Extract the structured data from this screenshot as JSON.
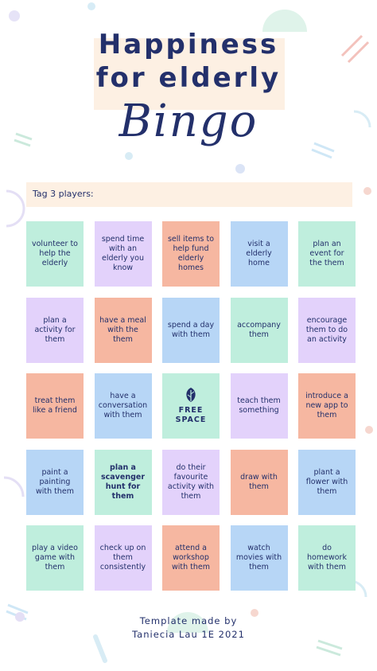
{
  "title": {
    "line1": "Happiness",
    "line2": "for elderly",
    "line3": "Bingo"
  },
  "tag_label": "Tag 3 players:",
  "cells": [
    {
      "text": "volunteer to help the elderly",
      "color": "green"
    },
    {
      "text": "spend time with an elderly you know",
      "color": "purple"
    },
    {
      "text": "sell items to help fund elderly homes",
      "color": "salmon"
    },
    {
      "text": "visit a elderly home",
      "color": "blue"
    },
    {
      "text": "plan an event for the them",
      "color": "green"
    },
    {
      "text": "plan a activity for them",
      "color": "purple"
    },
    {
      "text": "have a meal with the them",
      "color": "salmon"
    },
    {
      "text": "spend a day with them",
      "color": "blue"
    },
    {
      "text": "accompany them",
      "color": "green"
    },
    {
      "text": "encourage them to do an activity",
      "color": "purple"
    },
    {
      "text": "treat them like a friend",
      "color": "salmon"
    },
    {
      "text": "have a conversation with them",
      "color": "blue"
    },
    {
      "text": "FREE SPACE",
      "color": "green",
      "free": true,
      "icon": "leaf-icon"
    },
    {
      "text": "teach them something",
      "color": "purple"
    },
    {
      "text": "introduce a new app to them",
      "color": "salmon"
    },
    {
      "text": "paint a painting with them",
      "color": "blue"
    },
    {
      "text": "plan a scavenger hunt for them",
      "color": "green",
      "bold": true
    },
    {
      "text": "do their favourite activity with them",
      "color": "purple"
    },
    {
      "text": "draw with them",
      "color": "salmon"
    },
    {
      "text": "plant a flower with them",
      "color": "blue"
    },
    {
      "text": "play a video game with them",
      "color": "green"
    },
    {
      "text": "check up on them consistently",
      "color": "purple"
    },
    {
      "text": "attend a workshop with them",
      "color": "salmon"
    },
    {
      "text": "watch movies with them",
      "color": "blue"
    },
    {
      "text": "do homework with them",
      "color": "green"
    }
  ],
  "footer": {
    "line1": "Template made by",
    "line2": "Taniecia Lau 1E 2021"
  },
  "colors": {
    "navy": "#23306b",
    "green": "#bfeedd",
    "purple": "#e3d2fb",
    "salmon": "#f6b7a1",
    "blue": "#b7d6f6",
    "cream": "#fdf0e3"
  }
}
